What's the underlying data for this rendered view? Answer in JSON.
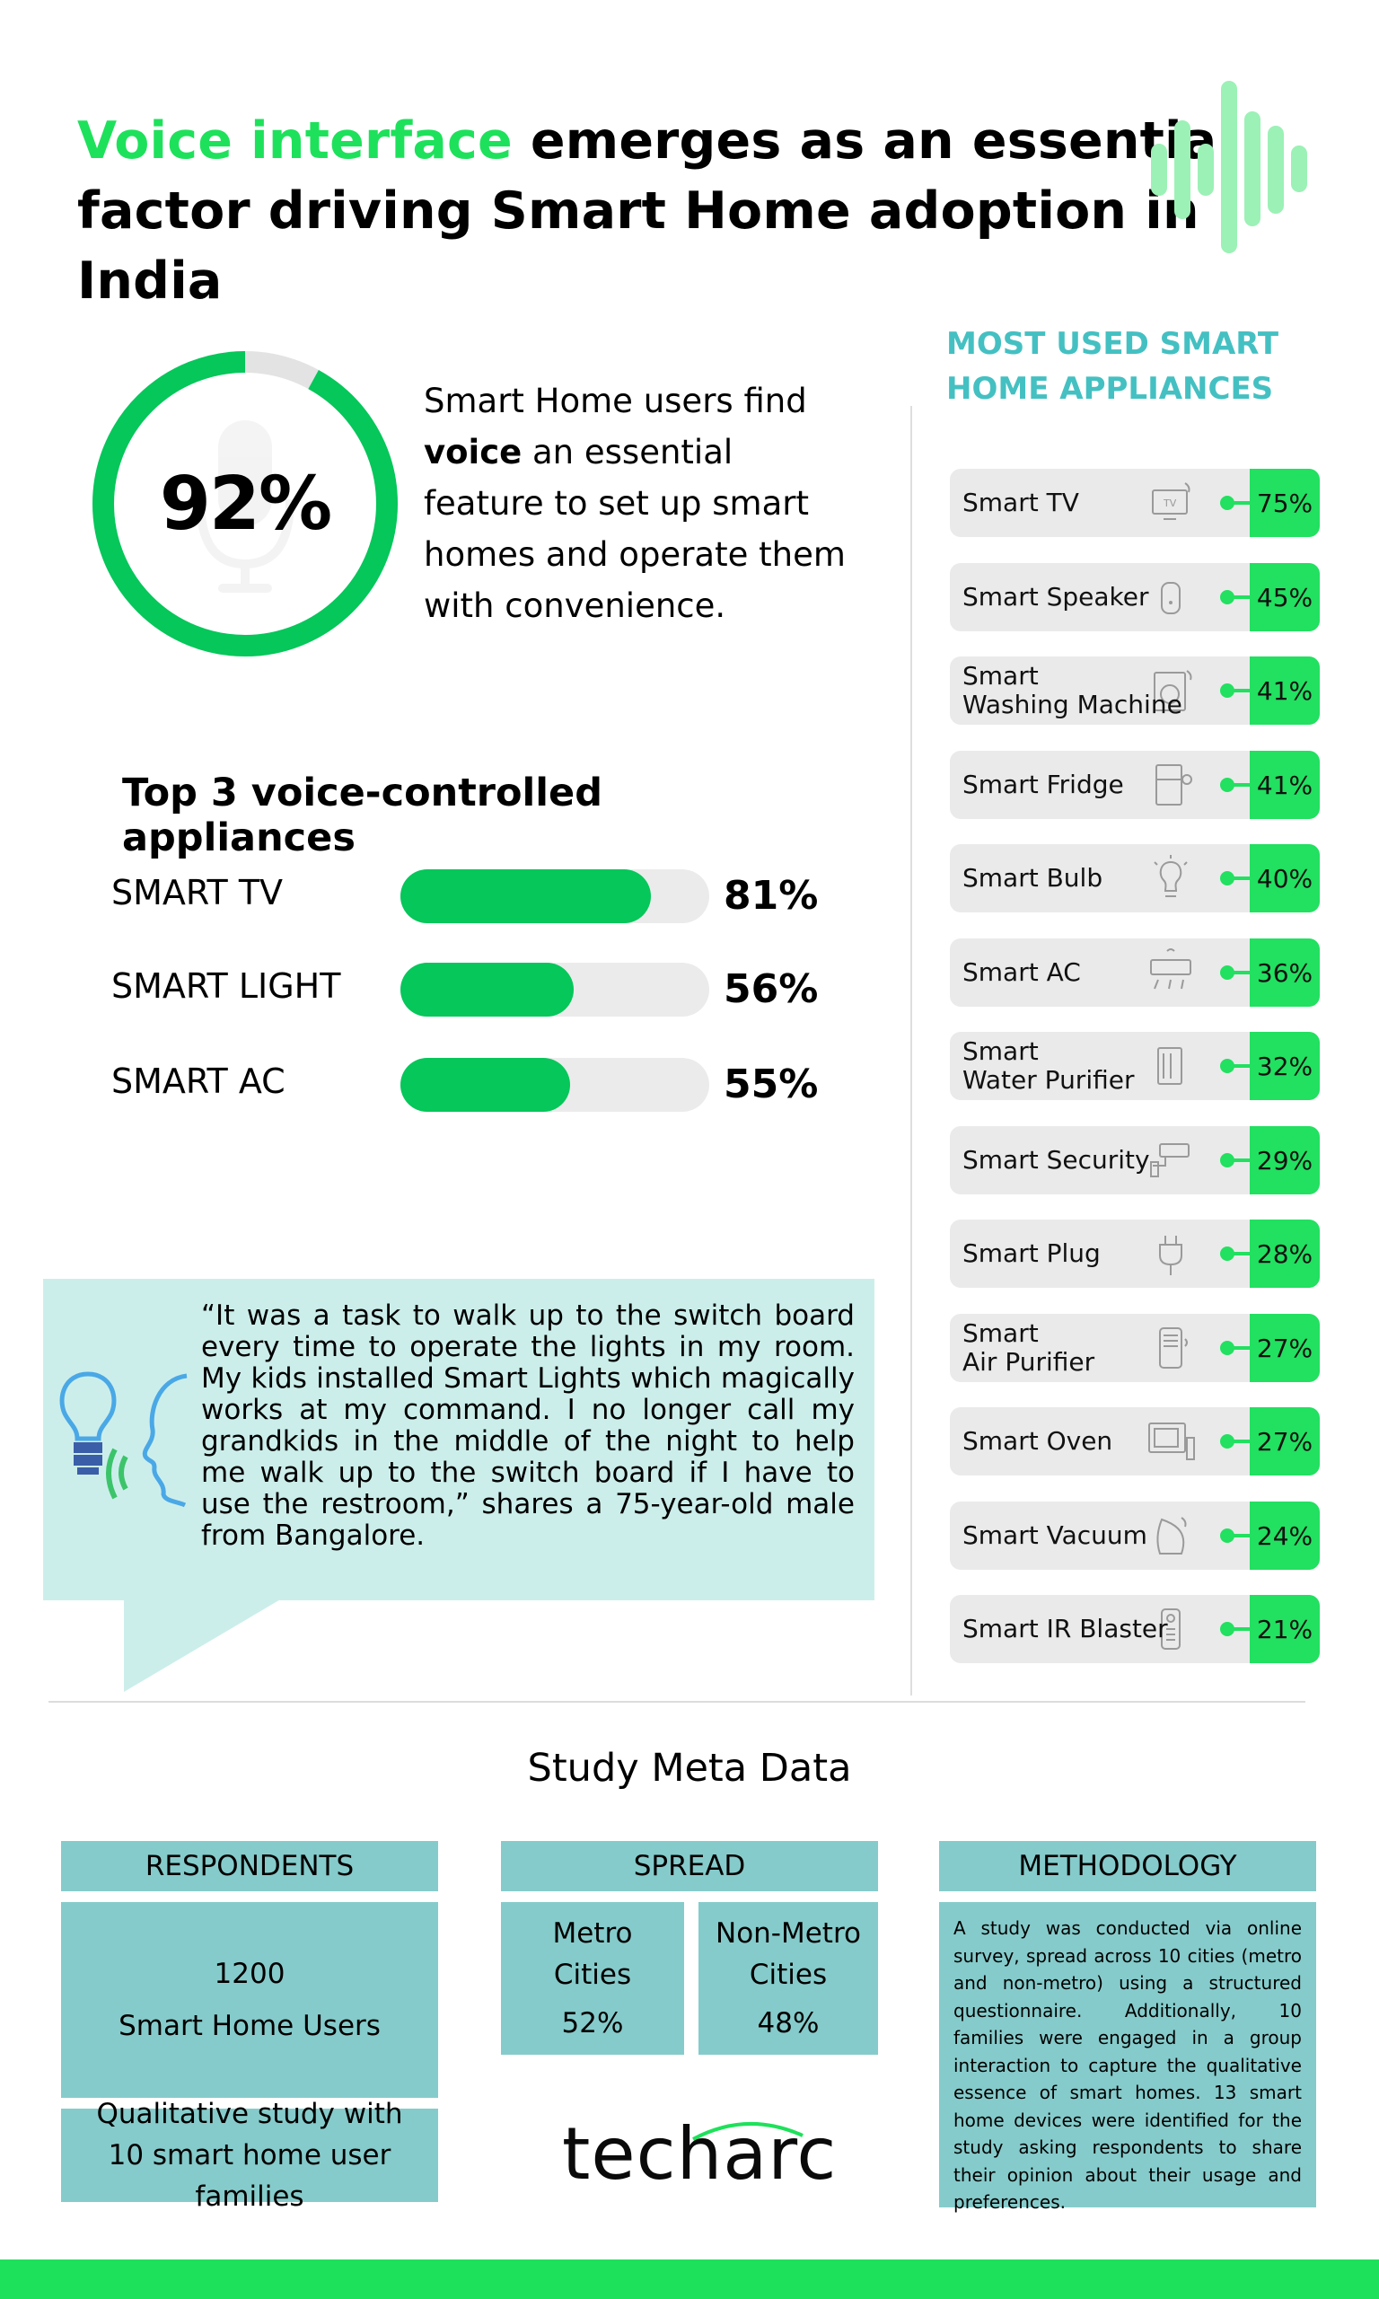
{
  "title": {
    "highlight": "Voice interface",
    "rest_line1": " emerges as an essential",
    "line2": "factor driving Smart Home adoption in India"
  },
  "voice_stat": {
    "value": "92%",
    "percent": 92,
    "text_before": "Smart Home users find",
    "text_bold": "voice",
    "text_after": " an essential feature to set up smart homes and operate them with convenience."
  },
  "top3": {
    "title": "Top 3 voice-controlled appliances",
    "items": [
      {
        "label": "SMART TV",
        "value_text": "81%",
        "value": 81
      },
      {
        "label": "SMART LIGHT",
        "value_text": "56%",
        "value": 56
      },
      {
        "label": "SMART AC",
        "value_text": "55%",
        "value": 55
      }
    ]
  },
  "quote": {
    "text": "“It was a task to walk up to the switch board every time to operate the lights in my room. My kids installed Smart Lights which magically works at my command. I no longer call my grandkids in the middle of the night to help me walk up to the switch board if I have to use the restroom,” shares a 75-year-old male from Bangalore."
  },
  "appliances": {
    "title_line1": "MOST USED SMART",
    "title_line2": "HOME APPLIANCES",
    "items": [
      {
        "name": "Smart TV",
        "pct": "75%",
        "icon": "tv-icon"
      },
      {
        "name": "Smart Speaker",
        "pct": "45%",
        "icon": "speaker-icon"
      },
      {
        "name": "Smart\nWashing Machine",
        "pct": "41%",
        "icon": "washing-machine-icon"
      },
      {
        "name": "Smart Fridge",
        "pct": "41%",
        "icon": "fridge-icon"
      },
      {
        "name": "Smart Bulb",
        "pct": "40%",
        "icon": "bulb-icon"
      },
      {
        "name": "Smart AC",
        "pct": "36%",
        "icon": "ac-icon"
      },
      {
        "name": "Smart\nWater Purifier",
        "pct": "32%",
        "icon": "water-purifier-icon"
      },
      {
        "name": "Smart Security",
        "pct": "29%",
        "icon": "security-camera-icon"
      },
      {
        "name": "Smart Plug",
        "pct": "28%",
        "icon": "plug-icon"
      },
      {
        "name": "Smart\nAir Purifier",
        "pct": "27%",
        "icon": "air-purifier-icon"
      },
      {
        "name": "Smart Oven",
        "pct": "27%",
        "icon": "oven-icon"
      },
      {
        "name": "Smart Vacuum",
        "pct": "24%",
        "icon": "vacuum-icon"
      },
      {
        "name": "Smart IR Blaster",
        "pct": "21%",
        "icon": "remote-icon"
      }
    ]
  },
  "meta": {
    "title": "Study Meta Data",
    "respondents": {
      "head": "RESPONDENTS",
      "count": "1200",
      "label": "Smart Home Users",
      "qualitative": "Qualitative study with 10 smart home user families"
    },
    "spread": {
      "head": "SPREAD",
      "metro_line1": "Metro",
      "metro_line2": "Cities",
      "metro_pct": "52%",
      "nonmetro_line1": "Non-Metro",
      "nonmetro_line2": "Cities",
      "nonmetro_pct": "48%"
    },
    "methodology": {
      "head": "METHODOLOGY",
      "text": "A study was conducted via online survey, spread across 10 cities (metro and non-metro) using a structured questionnaire. Additionally, 10 families were engaged in a group interaction to capture the qualitative essence of smart homes. 13 smart home devices were identified for the study asking respondents to share their opinion about their usage and preferences."
    }
  },
  "logo": "techarc",
  "colors": {
    "green": "#1ee15b",
    "bar_green": "#05c75a",
    "teal_title": "#44c0c2",
    "meta_teal": "#86cbcb",
    "quote_bg": "#cceeeb"
  },
  "chart_data": [
    {
      "type": "bar",
      "title": "Top 3 voice-controlled appliances",
      "categories": [
        "SMART TV",
        "SMART LIGHT",
        "SMART AC"
      ],
      "values": [
        81,
        56,
        55
      ],
      "ylim": [
        0,
        100
      ]
    },
    {
      "type": "bar",
      "title": "MOST USED SMART HOME APPLIANCES",
      "categories": [
        "Smart TV",
        "Smart Speaker",
        "Smart Washing Machine",
        "Smart Fridge",
        "Smart Bulb",
        "Smart AC",
        "Smart Water Purifier",
        "Smart Security",
        "Smart Plug",
        "Smart Air Purifier",
        "Smart Oven",
        "Smart Vacuum",
        "Smart IR Blaster"
      ],
      "values": [
        75,
        45,
        41,
        41,
        40,
        36,
        32,
        29,
        28,
        27,
        27,
        24,
        21
      ]
    },
    {
      "type": "pie",
      "categories": [
        "voice essential"
      ],
      "values": [
        92
      ]
    }
  ]
}
